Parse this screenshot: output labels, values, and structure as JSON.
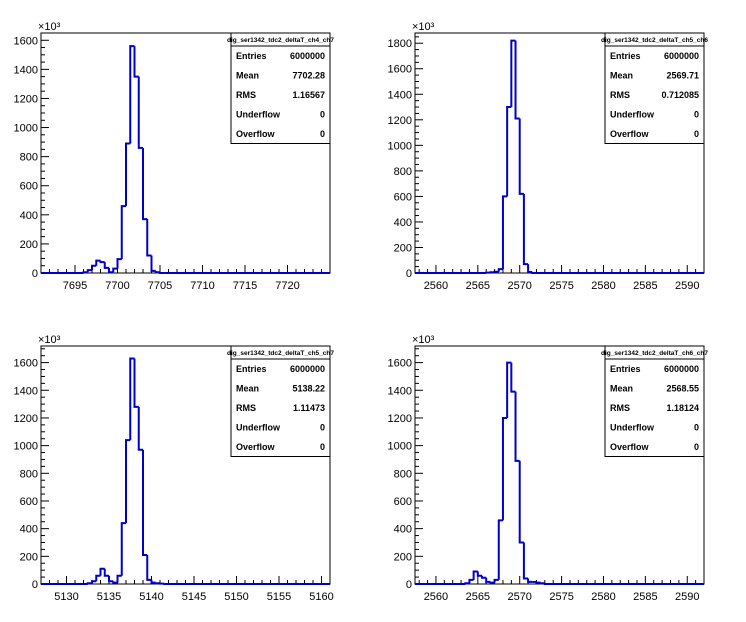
{
  "chart_data": [
    {
      "type": "bar",
      "style": "step-histogram",
      "title": "",
      "xlabel": "",
      "ylabel": "",
      "y_multiplier_label": "×10³",
      "xlim": [
        7691,
        7725
      ],
      "ylim": [
        0,
        1650
      ],
      "x_ticks": [
        7695,
        7700,
        7705,
        7710,
        7715,
        7720
      ],
      "y_ticks": [
        0,
        200,
        400,
        600,
        800,
        1000,
        1200,
        1400,
        1600
      ],
      "bin_width": 0.5,
      "bins_x": [
        7696.0,
        7696.5,
        7697.0,
        7697.5,
        7698.0,
        7698.5,
        7699.0,
        7699.5,
        7700.0,
        7700.5,
        7701.0,
        7701.5,
        7702.0,
        7702.5,
        7703.0,
        7703.5,
        7704.0,
        7704.5,
        7705.0
      ],
      "values": [
        5,
        20,
        50,
        85,
        75,
        35,
        5,
        30,
        95,
        460,
        890,
        1560,
        1350,
        860,
        370,
        120,
        15,
        5,
        0
      ],
      "series_color": "#0000cc",
      "stats": {
        "name": "dig_ser1342_tdc2_deltaT_ch4_ch7",
        "rows": [
          {
            "label": "Entries",
            "value": "6000000"
          },
          {
            "label": "Mean",
            "value": "7702.28"
          },
          {
            "label": "RMS",
            "value": "1.16567"
          },
          {
            "label": "Underflow",
            "value": "0"
          },
          {
            "label": "Overflow",
            "value": "0"
          }
        ]
      }
    },
    {
      "type": "bar",
      "style": "step-histogram",
      "title": "",
      "xlabel": "",
      "ylabel": "",
      "y_multiplier_label": "×10³",
      "xlim": [
        2557.5,
        2592
      ],
      "ylim": [
        0,
        1880
      ],
      "x_ticks": [
        2560,
        2565,
        2570,
        2575,
        2580,
        2585,
        2590
      ],
      "y_ticks": [
        0,
        200,
        400,
        600,
        800,
        1000,
        1200,
        1400,
        1600,
        1800
      ],
      "bin_width": 0.5,
      "bins_x": [
        2566.0,
        2566.5,
        2567.0,
        2567.5,
        2568.0,
        2568.5,
        2569.0,
        2569.5,
        2570.0,
        2570.5,
        2571.0,
        2571.5
      ],
      "values": [
        3,
        6,
        10,
        30,
        600,
        1300,
        1820,
        1210,
        620,
        70,
        8,
        0
      ],
      "series_color": "#0000cc",
      "stats": {
        "name": "dig_ser1342_tdc2_deltaT_ch5_ch6",
        "rows": [
          {
            "label": "Entries",
            "value": "6000000"
          },
          {
            "label": "Mean",
            "value": "2569.71"
          },
          {
            "label": "RMS",
            "value": "0.712085"
          },
          {
            "label": "Underflow",
            "value": "0"
          },
          {
            "label": "Overflow",
            "value": "0"
          }
        ]
      }
    },
    {
      "type": "bar",
      "style": "step-histogram",
      "title": "",
      "xlabel": "",
      "ylabel": "",
      "y_multiplier_label": "×10³",
      "xlim": [
        5127,
        5161
      ],
      "ylim": [
        0,
        1720
      ],
      "x_ticks": [
        5130,
        5135,
        5140,
        5145,
        5150,
        5155,
        5160
      ],
      "y_ticks": [
        0,
        200,
        400,
        600,
        800,
        1000,
        1200,
        1400,
        1600
      ],
      "bin_width": 0.5,
      "bins_x": [
        5132.5,
        5133.0,
        5133.5,
        5134.0,
        5134.5,
        5135.0,
        5135.5,
        5136.0,
        5136.5,
        5137.0,
        5137.5,
        5138.0,
        5138.5,
        5139.0,
        5139.5,
        5140.0,
        5140.5,
        5141.0,
        5141.5
      ],
      "values": [
        5,
        20,
        60,
        110,
        60,
        20,
        10,
        60,
        440,
        1040,
        1630,
        1280,
        970,
        210,
        30,
        10,
        5,
        3,
        0
      ],
      "series_color": "#0000cc",
      "stats": {
        "name": "dig_ser1342_tdc2_deltaT_ch5_ch7",
        "rows": [
          {
            "label": "Entries",
            "value": "6000000"
          },
          {
            "label": "Mean",
            "value": "5138.22"
          },
          {
            "label": "RMS",
            "value": "1.11473"
          },
          {
            "label": "Underflow",
            "value": "0"
          },
          {
            "label": "Overflow",
            "value": "0"
          }
        ]
      }
    },
    {
      "type": "bar",
      "style": "step-histogram",
      "title": "",
      "xlabel": "",
      "ylabel": "",
      "y_multiplier_label": "×10³",
      "xlim": [
        2557.5,
        2592
      ],
      "ylim": [
        0,
        1720
      ],
      "x_ticks": [
        2560,
        2565,
        2570,
        2575,
        2580,
        2585,
        2590
      ],
      "y_ticks": [
        0,
        200,
        400,
        600,
        800,
        1000,
        1200,
        1400,
        1600
      ],
      "bin_width": 0.5,
      "bins_x": [
        2563.5,
        2564.0,
        2564.5,
        2565.0,
        2565.5,
        2566.0,
        2566.5,
        2567.0,
        2567.5,
        2568.0,
        2568.5,
        2569.0,
        2569.5,
        2570.0,
        2570.5,
        2571.0,
        2571.5,
        2572.0,
        2572.5,
        2573.0
      ],
      "values": [
        5,
        30,
        90,
        60,
        45,
        15,
        10,
        30,
        460,
        1200,
        1600,
        1390,
        890,
        300,
        40,
        15,
        15,
        10,
        5,
        0
      ],
      "series_color": "#0000cc",
      "stats": {
        "name": "dig_ser1342_tdc2_deltaT_ch6_ch7",
        "rows": [
          {
            "label": "Entries",
            "value": "6000000"
          },
          {
            "label": "Mean",
            "value": "2568.55"
          },
          {
            "label": "RMS",
            "value": "1.18124"
          },
          {
            "label": "Underflow",
            "value": "0"
          },
          {
            "label": "Overflow",
            "value": "0"
          }
        ]
      }
    }
  ]
}
